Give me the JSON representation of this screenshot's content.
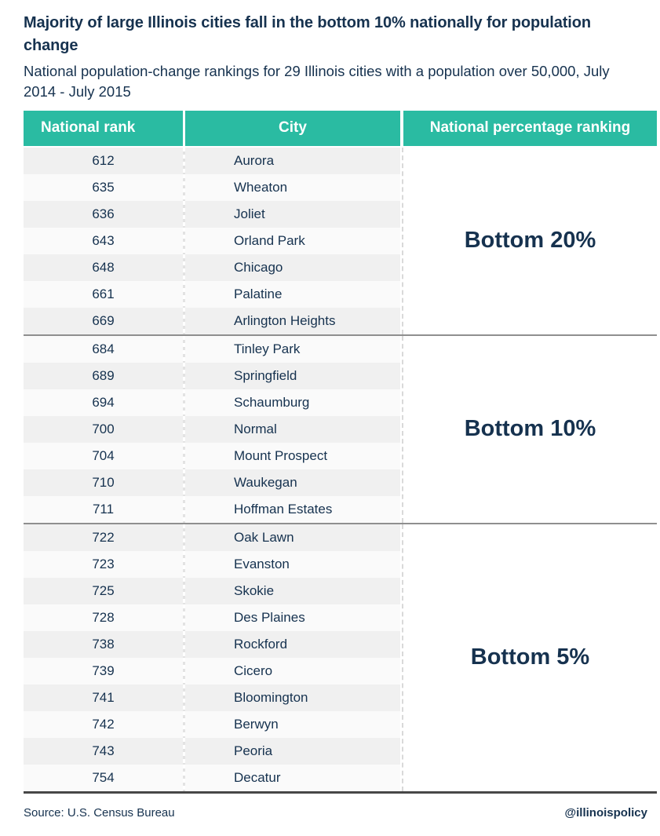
{
  "colors": {
    "header_teal": "#2abba2",
    "text_navy": "#16324f",
    "row_grey": "#f0f0f0",
    "row_white": "#fafafa",
    "separator_grey": "#8f8f8f",
    "separator_dark": "#474747"
  },
  "chart_data": {
    "type": "table",
    "title": "Majority of large Illinois cities fall in the bottom 10% nationally for population change",
    "subtitle": "National population-change rankings for 29 Illinois cities with a population over 50,000, July 2014 - July 2015",
    "columns": [
      "National rank",
      "City",
      "National percentage ranking"
    ],
    "layout": {
      "striped": true,
      "grouped_column": "National percentage ranking",
      "legend_position": "none",
      "grid": false
    },
    "groups": [
      {
        "label": "Bottom 20%",
        "rows": [
          {
            "rank": 612,
            "city": "Aurora"
          },
          {
            "rank": 635,
            "city": "Wheaton"
          },
          {
            "rank": 636,
            "city": "Joliet"
          },
          {
            "rank": 643,
            "city": "Orland Park"
          },
          {
            "rank": 648,
            "city": "Chicago"
          },
          {
            "rank": 661,
            "city": "Palatine"
          },
          {
            "rank": 669,
            "city": "Arlington Heights"
          }
        ]
      },
      {
        "label": "Bottom 10%",
        "rows": [
          {
            "rank": 684,
            "city": "Tinley Park"
          },
          {
            "rank": 689,
            "city": "Springfield"
          },
          {
            "rank": 694,
            "city": "Schaumburg"
          },
          {
            "rank": 700,
            "city": "Normal"
          },
          {
            "rank": 704,
            "city": "Mount Prospect"
          },
          {
            "rank": 710,
            "city": "Waukegan"
          },
          {
            "rank": 711,
            "city": "Hoffman Estates"
          }
        ]
      },
      {
        "label": "Bottom 5%",
        "rows": [
          {
            "rank": 722,
            "city": "Oak Lawn"
          },
          {
            "rank": 723,
            "city": "Evanston"
          },
          {
            "rank": 725,
            "city": "Skokie"
          },
          {
            "rank": 728,
            "city": "Des Plaines"
          },
          {
            "rank": 738,
            "city": "Rockford"
          },
          {
            "rank": 739,
            "city": "Cicero"
          },
          {
            "rank": 741,
            "city": "Bloomington"
          },
          {
            "rank": 742,
            "city": "Berwyn"
          },
          {
            "rank": 743,
            "city": "Peoria"
          },
          {
            "rank": 754,
            "city": "Decatur"
          }
        ]
      }
    ]
  },
  "footer": {
    "source": "Source: U.S. Census Bureau",
    "credit": "@illinoispolicy"
  }
}
